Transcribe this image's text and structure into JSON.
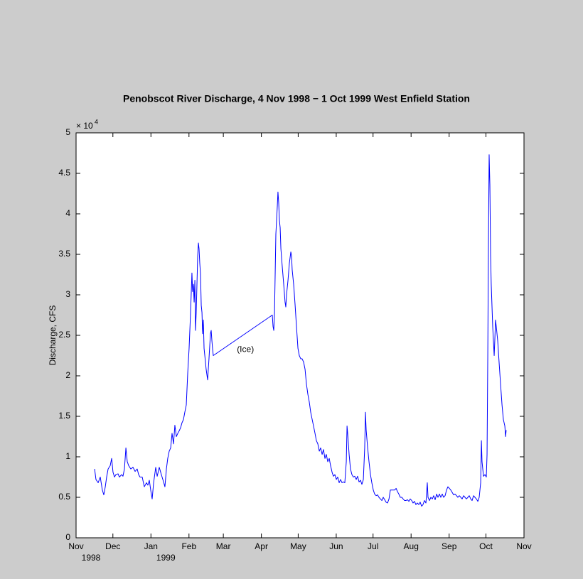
{
  "chart_data": {
    "type": "line",
    "title": "Penobscot River Discharge,  4 Nov 1998 − 1 Oct 1999   West Enfield Station",
    "ylabel": "Discharge, CFS",
    "y_multiplier": "× 10",
    "y_multiplier_exponent": "4",
    "xlim": [
      0,
      365
    ],
    "xticks": [
      {
        "value": 0,
        "label": "Nov"
      },
      {
        "value": 30,
        "label": "Dec"
      },
      {
        "value": 61,
        "label": "Jan"
      },
      {
        "value": 92,
        "label": "Feb"
      },
      {
        "value": 120,
        "label": "Mar"
      },
      {
        "value": 151,
        "label": "Apr"
      },
      {
        "value": 181,
        "label": "May"
      },
      {
        "value": 212,
        "label": "Jun"
      },
      {
        "value": 242,
        "label": "Jul"
      },
      {
        "value": 273,
        "label": "Aug"
      },
      {
        "value": 304,
        "label": "Sep"
      },
      {
        "value": 334,
        "label": "Oct"
      },
      {
        "value": 365,
        "label": "Nov"
      }
    ],
    "xtick_years": [
      "1998",
      null,
      "1999",
      null,
      null,
      null,
      null,
      null,
      null,
      null,
      null,
      null,
      null
    ],
    "ylim": [
      0,
      50000
    ],
    "yticks": [
      0,
      {
        "value": 5000,
        "label": "0.5"
      },
      {
        "value": 10000,
        "label": "1"
      },
      {
        "value": 15000,
        "label": "1.5"
      },
      {
        "value": 20000,
        "label": "2"
      },
      {
        "value": 25000,
        "label": "2.5"
      },
      {
        "value": 30000,
        "label": "3"
      },
      {
        "value": 35000,
        "label": "3.5"
      },
      {
        "value": 40000,
        "label": "4"
      },
      {
        "value": 45000,
        "label": "4.5"
      },
      {
        "value": 50000,
        "label": "5"
      }
    ],
    "annotations": [
      {
        "text": "(Ice)",
        "x": 138,
        "y": 23200
      }
    ],
    "series": [
      {
        "color": "#0000ff",
        "x": [
          15.1,
          16.2,
          18.0,
          19.7,
          21.4,
          22.6,
          23.8,
          24.9,
          26.1,
          27.8,
          29.0,
          30.1,
          31.3,
          32.4,
          34.2,
          35.3,
          37.1,
          38.2,
          39.4,
          40.6,
          41.7,
          42.9,
          44.6,
          46.4,
          48.1,
          49.8,
          51.0,
          52.1,
          53.9,
          55.6,
          57.4,
          58.5,
          59.7,
          60.8,
          62.0,
          63.2,
          64.9,
          66.1,
          67.8,
          69.5,
          71.3,
          72.4,
          73.6,
          74.7,
          75.9,
          77.1,
          78.2,
          79.4,
          80.5,
          81.7,
          82.9,
          84.0,
          85.2,
          86.3,
          87.5,
          88.6,
          89.8,
          91.0,
          92.1,
          93.3,
          94.4,
          95.0,
          95.6,
          96.2,
          96.8,
          97.3,
          97.9,
          99.1,
          99.7,
          100.2,
          100.8,
          101.4,
          102.0,
          102.6,
          103.1,
          103.7,
          104.3,
          104.9,
          106.0,
          107.2,
          108.3,
          109.5,
          110.1,
          110.7,
          111.2,
          111.8,
          159.9,
          160.5,
          161.1,
          161.7,
          162.2,
          162.8,
          164.0,
          164.5,
          165.1,
          165.7,
          166.3,
          166.9,
          168.0,
          169.2,
          170.3,
          170.9,
          171.5,
          172.7,
          173.8,
          175.0,
          175.6,
          176.1,
          177.3,
          178.5,
          179.6,
          180.8,
          181.9,
          183.1,
          184.2,
          185.4,
          186.6,
          187.7,
          188.9,
          190.0,
          191.2,
          192.4,
          193.5,
          194.7,
          195.8,
          197.0,
          198.2,
          199.3,
          200.5,
          201.6,
          202.8,
          203.9,
          205.1,
          206.3,
          207.4,
          208.6,
          209.7,
          210.9,
          212.1,
          213.2,
          214.4,
          215.5,
          216.7,
          217.9,
          219.0,
          220.2,
          220.8,
          221.3,
          222.5,
          223.6,
          224.8,
          226.0,
          227.1,
          228.3,
          229.4,
          230.6,
          231.8,
          232.9,
          234.1,
          235.2,
          235.8,
          236.4,
          237.6,
          238.7,
          239.9,
          241.0,
          242.2,
          243.3,
          244.5,
          245.7,
          246.8,
          248.0,
          249.2,
          250.3,
          251.5,
          252.6,
          253.8,
          255.0,
          256.1,
          257.3,
          258.4,
          259.6,
          260.8,
          261.9,
          263.0,
          264.2,
          265.4,
          266.5,
          267.7,
          268.8,
          270.0,
          271.2,
          272.3,
          273.5,
          274.6,
          275.8,
          276.9,
          278.1,
          279.3,
          280.4,
          281.6,
          282.7,
          283.9,
          285.1,
          286.2,
          286.8,
          288.0,
          289.1,
          290.3,
          291.4,
          292.6,
          293.8,
          294.9,
          296.1,
          297.2,
          298.4,
          299.5,
          300.7,
          301.9,
          303.0,
          304.2,
          305.3,
          306.5,
          307.7,
          308.8,
          310.0,
          311.1,
          312.3,
          313.5,
          314.6,
          315.8,
          316.9,
          318.1,
          319.3,
          320.4,
          321.6,
          322.7,
          323.9,
          325.0,
          326.2,
          327.4,
          328.5,
          329.7,
          330.3,
          330.8,
          332.0,
          333.2,
          334.3,
          334.9,
          335.5,
          336.0,
          336.6,
          337.2,
          337.8,
          338.3,
          338.9,
          339.5,
          340.1,
          340.7,
          341.2,
          341.8,
          342.4,
          343.6,
          344.7,
          345.9,
          347.1,
          348.2,
          349.4,
          350.0,
          350.5
        ],
        "values": [
          8500,
          7200,
          6800,
          7500,
          5900,
          5300,
          6300,
          7500,
          8500,
          8900,
          9800,
          8100,
          7500,
          7800,
          7900,
          7500,
          7800,
          7600,
          8500,
          11100,
          9400,
          8900,
          8500,
          8700,
          8200,
          8500,
          7800,
          7500,
          7500,
          6300,
          6800,
          6500,
          7100,
          5900,
          4800,
          6800,
          8700,
          7600,
          8700,
          7800,
          6900,
          6300,
          8500,
          9800,
          10700,
          11100,
          12900,
          11600,
          13900,
          12500,
          12900,
          13200,
          13600,
          14200,
          14600,
          15500,
          16400,
          20400,
          23400,
          27800,
          32700,
          30400,
          31300,
          29100,
          31800,
          25600,
          27800,
          34800,
          36400,
          35700,
          33900,
          32600,
          28700,
          27800,
          25200,
          26900,
          23400,
          22500,
          20800,
          19500,
          22100,
          25200,
          25600,
          24300,
          23400,
          22500,
          27500,
          26100,
          25600,
          27800,
          32200,
          37500,
          41000,
          42700,
          41400,
          39200,
          38300,
          35700,
          33500,
          31300,
          29100,
          28500,
          30000,
          31800,
          33900,
          35300,
          34800,
          33100,
          31300,
          28700,
          26100,
          23400,
          22500,
          22100,
          22100,
          21700,
          20800,
          19000,
          17700,
          16800,
          15500,
          14600,
          13800,
          12900,
          12000,
          11600,
          10700,
          11100,
          10300,
          10900,
          9800,
          10300,
          9400,
          9800,
          8900,
          8100,
          7600,
          7800,
          7200,
          7500,
          6800,
          7200,
          6800,
          6900,
          6800,
          9400,
          13800,
          12900,
          10300,
          8500,
          7800,
          7500,
          7600,
          7200,
          7600,
          6900,
          7100,
          6600,
          7200,
          11100,
          15500,
          13300,
          11100,
          9400,
          7800,
          6800,
          5900,
          5400,
          5200,
          5300,
          5000,
          4800,
          4600,
          5000,
          4700,
          4400,
          4300,
          4800,
          5900,
          5900,
          5900,
          5900,
          6100,
          5700,
          5400,
          5000,
          5000,
          4800,
          4600,
          4600,
          4700,
          4500,
          4800,
          4600,
          4300,
          4500,
          4100,
          4300,
          4100,
          4400,
          3900,
          4100,
          4600,
          4300,
          6800,
          5000,
          4600,
          5000,
          4800,
          5200,
          4700,
          5400,
          5000,
          5400,
          5000,
          5400,
          5000,
          5200,
          5900,
          6300,
          6100,
          5900,
          5600,
          5300,
          5400,
          5200,
          5000,
          5200,
          5000,
          4800,
          5200,
          5000,
          4800,
          5000,
          5200,
          4800,
          4600,
          5200,
          5000,
          4800,
          4500,
          5000,
          6800,
          12000,
          9400,
          7600,
          7800,
          7500,
          10300,
          22500,
          35700,
          47300,
          43600,
          34800,
          31300,
          28700,
          26100,
          24300,
          22500,
          24300,
          26900,
          26100,
          24300,
          21700,
          19000,
          16400,
          14600,
          13800,
          12500,
          13300
        ]
      }
    ]
  }
}
